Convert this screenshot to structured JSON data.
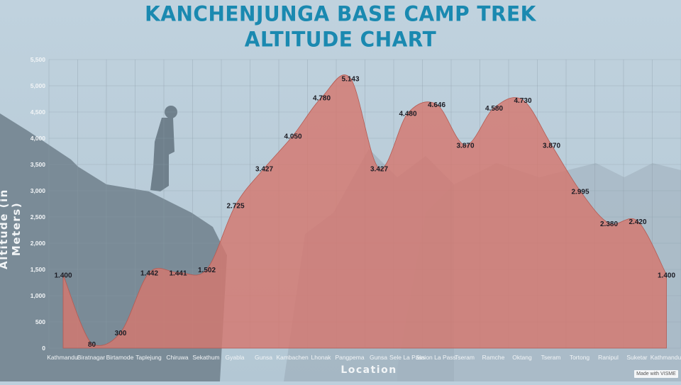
{
  "title_line1": "KANCHENJUNGA BASE CAMP TREK",
  "title_line2": "ALTITUDE CHART",
  "watermark": "Made with VISME",
  "colors": {
    "title": "#1a89b0",
    "area_fill": "#d4776f",
    "area_stroke": "#b55a52",
    "grid": "#8a9aa6",
    "tick_text": "#f2f5f7",
    "data_label": "#1c1c24"
  },
  "chart_data": {
    "type": "area",
    "title": "KANCHENJUNGA BASE CAMP TREK ALTITUDE CHART",
    "xlabel": "Location",
    "ylabel": "Altitude (in Meters)",
    "ylim": [
      0,
      5500
    ],
    "yticks": [
      0,
      500,
      1000,
      1500,
      2000,
      2500,
      3000,
      3500,
      4000,
      4500,
      5000,
      5500
    ],
    "ytick_labels": [
      "0",
      "500",
      "1,000",
      "1,500",
      "2,000",
      "2,500",
      "3,000",
      "3,500",
      "4,000",
      "4,500",
      "5,000",
      "5,500"
    ],
    "grid": true,
    "legend": "none",
    "categories": [
      "Kathmandu",
      "Biratnagar",
      "Birtamode",
      "Taplejung",
      "Chiruwa",
      "Sekathum",
      "Gyabla",
      "Gunsa",
      "Kambachen",
      "Lhonak",
      "Pangpema",
      "Gunsa",
      "Sele La Pass",
      "Sinion La Pass",
      "Tseram",
      "Ramche",
      "Oktang",
      "Tseram",
      "Tortong",
      "Ranipul",
      "Suketar",
      "Kathmandu"
    ],
    "values": [
      1400,
      80,
      300,
      1442,
      1441,
      1502,
      2725,
      3427,
      4050,
      4780,
      5143,
      3427,
      4480,
      4646,
      3870,
      4580,
      4730,
      3870,
      2995,
      2380,
      2420,
      1400
    ],
    "data_labels": [
      "1.400",
      "80",
      "300",
      "1.442",
      "1.441",
      "1.502",
      "2.725",
      "3.427",
      "4.050",
      "4.780",
      "5.143",
      "3.427",
      "4.480",
      "4.646",
      "3.870",
      "4.580",
      "4.730",
      "3.870",
      "2.995",
      "2.380",
      "2.420",
      "1.400"
    ]
  }
}
